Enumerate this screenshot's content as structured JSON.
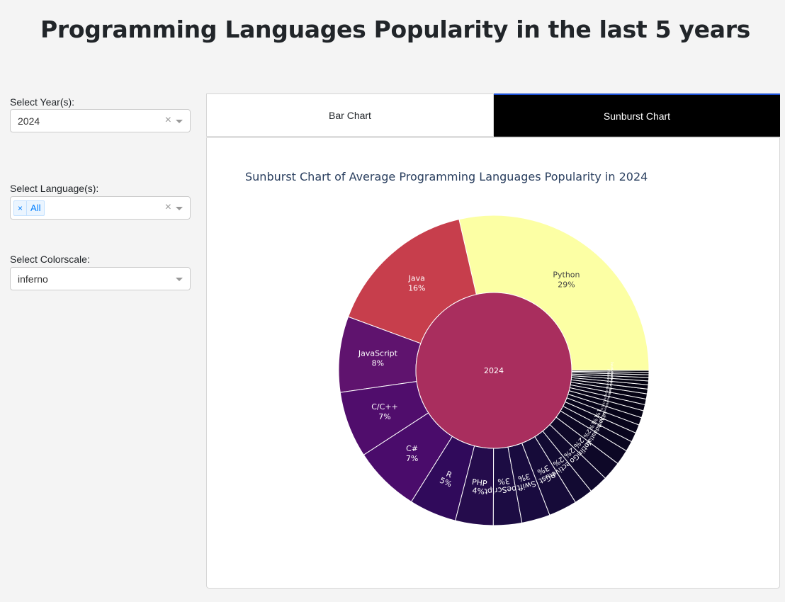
{
  "page": {
    "title": "Programming Languages Popularity in the last 5 years"
  },
  "sidebar": {
    "year": {
      "label": "Select Year(s):",
      "value": "2024",
      "clear": "×"
    },
    "language": {
      "label": "Select Language(s):",
      "chip_remove": "×",
      "chip_label": "All",
      "clear": "×"
    },
    "colorscale": {
      "label": "Select Colorscale:",
      "value": "inferno"
    }
  },
  "tabs": [
    {
      "label": "Bar Chart",
      "selected": false
    },
    {
      "label": "Sunburst Chart",
      "selected": true
    }
  ],
  "colors": {
    "tab_selected_bg": "#000000",
    "tab_selected_border": "#1a4fd6",
    "chip_bg": "#ebf5ff",
    "chip_text": "#007eff"
  },
  "chart_data": {
    "type": "sunburst",
    "title": "Sunburst Chart of Average Programming Languages Popularity in 2024",
    "colorscale": "inferno",
    "root": {
      "label": "2024",
      "color": "#a92e5e"
    },
    "children": [
      {
        "label": "Python",
        "value": 29.0,
        "pct": "29%",
        "color": "#fcffa4"
      },
      {
        "label": "Java",
        "value": 16.0,
        "pct": "16%",
        "color": "#c73e4c"
      },
      {
        "label": "JavaScript",
        "value": 8.0,
        "pct": "8%",
        "color": "#5f136e"
      },
      {
        "label": "C/C++",
        "value": 7.0,
        "pct": "7%",
        "color": "#500d6c"
      },
      {
        "label": "C#",
        "value": 7.0,
        "pct": "7%",
        "color": "#4a0c6b"
      },
      {
        "label": "R",
        "value": 5.0,
        "pct": "5%",
        "color": "#300a5b"
      },
      {
        "label": "PHP",
        "value": 4.0,
        "pct": "4%",
        "color": "#250c4c"
      },
      {
        "label": "TypeScript",
        "value": 3.0,
        "pct": "3%",
        "color": "#1c0c43"
      },
      {
        "label": "Swift",
        "value": 3.0,
        "pct": "3%",
        "color": "#190b3f"
      },
      {
        "label": "Rust",
        "value": 3.0,
        "pct": "3%",
        "color": "#160b39"
      },
      {
        "label": "Objective-C",
        "value": 2.0,
        "pct": "2%",
        "color": "#120a32"
      },
      {
        "label": "Go",
        "value": 2.0,
        "pct": "2%",
        "color": "#10092d"
      },
      {
        "label": "Kotlin",
        "value": 2.0,
        "pct": "2%",
        "color": "#0e0828"
      },
      {
        "label": "Matlab",
        "value": 1.6,
        "pct": "2%",
        "color": "#0c0724"
      },
      {
        "label": "Ada",
        "value": 1.1,
        "pct": "1%",
        "color": "#0a0620"
      },
      {
        "label": "Dart",
        "value": 1.0,
        "pct": "1%",
        "color": "#09051d"
      },
      {
        "label": "Ruby",
        "value": 0.9,
        "pct": "1%",
        "color": "#08051b"
      },
      {
        "label": "Powershell",
        "value": 0.8,
        "pct": "1%",
        "color": "#070419"
      },
      {
        "label": "VBA",
        "value": 0.75,
        "pct": "1%",
        "color": "#060417"
      },
      {
        "label": "Lua",
        "value": 0.65,
        "pct": "1%",
        "color": "#060316"
      },
      {
        "label": "Scala",
        "value": 0.6,
        "pct": "1%",
        "color": "#050315"
      },
      {
        "label": "Abap",
        "value": 0.55,
        "pct": "1%",
        "color": "#050314"
      },
      {
        "label": "Visual Basic",
        "value": 0.5,
        "pct": "0%",
        "color": "#040313"
      },
      {
        "label": "Julia",
        "value": 0.45,
        "pct": "0%",
        "color": "#040212"
      },
      {
        "label": "Groovy",
        "value": 0.4,
        "pct": "0%",
        "color": "#030211"
      },
      {
        "label": "Haskell",
        "value": 0.35,
        "pct": "0%",
        "color": "#030210"
      },
      {
        "label": "Perl",
        "value": 0.3,
        "pct": "0%",
        "color": "#03020f"
      },
      {
        "label": "Cobol",
        "value": 0.25,
        "pct": "0%",
        "color": "#02010e"
      },
      {
        "label": "Delphi/Pascal",
        "value": 0.2,
        "pct": "0%",
        "color": "#02010d"
      }
    ]
  }
}
